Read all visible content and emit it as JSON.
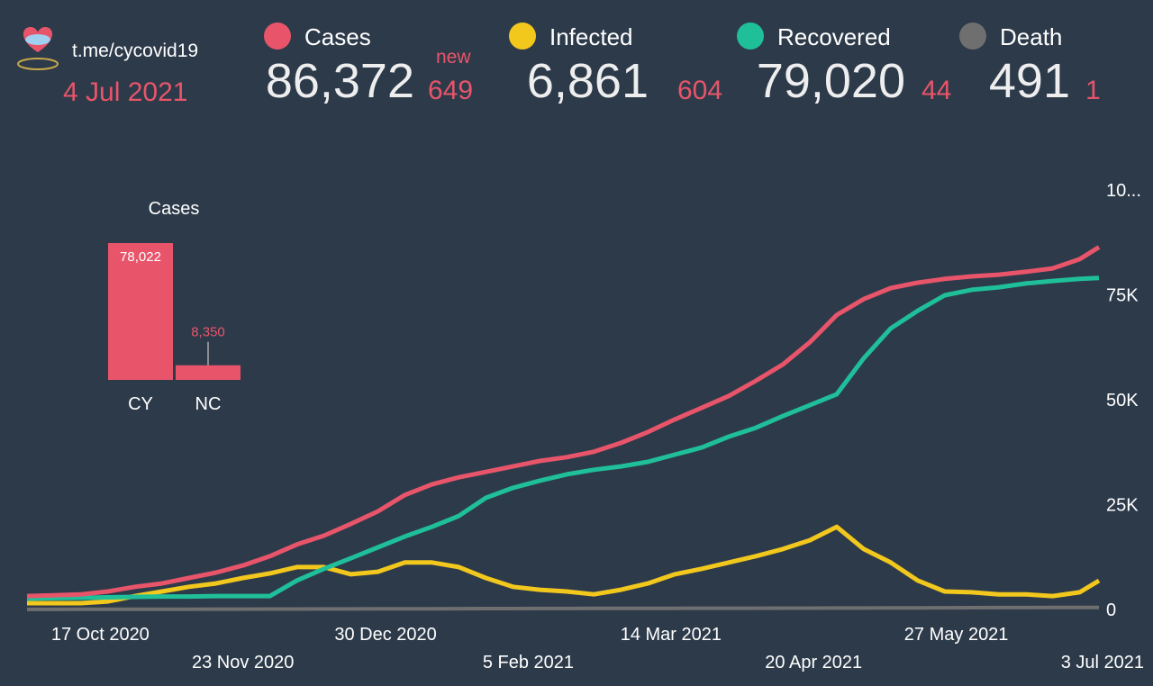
{
  "header": {
    "link": "t.me/cycovid19",
    "date": "4 Jul 2021",
    "new_label": "new",
    "stats": [
      {
        "name": "Cases",
        "color": "#e8556a",
        "value": "86,372",
        "new": "649"
      },
      {
        "name": "Infected",
        "color": "#f2c81d",
        "value": "6,861",
        "new": "604"
      },
      {
        "name": "Recovered",
        "color": "#1fbf9a",
        "value": "79,020",
        "new": "44"
      },
      {
        "name": "Death",
        "color": "#6f6f6f",
        "value": "491",
        "new": "1"
      }
    ]
  },
  "chart_data": [
    {
      "type": "bar",
      "title": "Cases",
      "categories": [
        "CY",
        "NC"
      ],
      "values": [
        78022,
        8350
      ],
      "value_labels": [
        "78,022",
        "8,350"
      ],
      "color": "#e8556a"
    },
    {
      "type": "line",
      "x": [
        "2020-09-28",
        "2020-10-05",
        "2020-10-12",
        "2020-10-19",
        "2020-10-26",
        "2020-11-02",
        "2020-11-09",
        "2020-11-16",
        "2020-11-23",
        "2020-11-30",
        "2020-12-07",
        "2020-12-14",
        "2020-12-21",
        "2020-12-28",
        "2021-01-04",
        "2021-01-11",
        "2021-01-18",
        "2021-01-25",
        "2021-02-01",
        "2021-02-08",
        "2021-02-15",
        "2021-02-22",
        "2021-03-01",
        "2021-03-08",
        "2021-03-15",
        "2021-03-22",
        "2021-03-29",
        "2021-04-05",
        "2021-04-12",
        "2021-04-19",
        "2021-04-26",
        "2021-05-03",
        "2021-05-10",
        "2021-05-17",
        "2021-05-24",
        "2021-05-31",
        "2021-06-07",
        "2021-06-14",
        "2021-06-21",
        "2021-06-28",
        "2021-07-03"
      ],
      "series": [
        {
          "name": "Cases",
          "color": "#e8556a",
          "values": [
            3200,
            3400,
            3600,
            4300,
            5400,
            6200,
            7500,
            8800,
            10500,
            12700,
            15500,
            17600,
            20400,
            23400,
            27300,
            29800,
            31500,
            32800,
            34100,
            35400,
            36300,
            37600,
            39700,
            42300,
            45300,
            48100,
            50900,
            54500,
            58400,
            63700,
            70200,
            74000,
            76600,
            77900,
            78800,
            79400,
            79800,
            80500,
            81300,
            83500,
            86372
          ]
        },
        {
          "name": "Infected",
          "color": "#f2c81d",
          "values": [
            1500,
            1500,
            1500,
            1900,
            3200,
            4300,
            5400,
            6200,
            7500,
            8600,
            10100,
            10100,
            8400,
            9000,
            11200,
            11200,
            10100,
            7500,
            5400,
            4700,
            4300,
            3600,
            4700,
            6200,
            8400,
            9700,
            11200,
            12700,
            14400,
            16500,
            19700,
            14400,
            11200,
            6900,
            4300,
            4100,
            3600,
            3600,
            3200,
            4100,
            6861
          ]
        },
        {
          "name": "Recovered",
          "color": "#1fbf9a",
          "values": [
            2600,
            2700,
            2800,
            2900,
            3000,
            3100,
            3100,
            3200,
            3200,
            3200,
            6900,
            9700,
            12200,
            14800,
            17400,
            19700,
            22300,
            26600,
            29000,
            30700,
            32200,
            33300,
            34100,
            35200,
            36900,
            38600,
            41200,
            43300,
            46100,
            48700,
            51300,
            59900,
            67000,
            71200,
            74900,
            76200,
            76800,
            77700,
            78300,
            78800,
            79020
          ]
        },
        {
          "name": "Death",
          "color": "#6f6f6f",
          "values": [
            30,
            30,
            40,
            50,
            50,
            60,
            70,
            80,
            90,
            100,
            110,
            120,
            130,
            140,
            160,
            180,
            200,
            210,
            220,
            230,
            240,
            250,
            260,
            270,
            280,
            290,
            300,
            310,
            320,
            330,
            340,
            350,
            360,
            380,
            400,
            420,
            440,
            460,
            470,
            480,
            491
          ]
        }
      ],
      "xlim": [
        "2020-09-28",
        "2021-07-03"
      ],
      "xticks": [
        {
          "value": "2020-10-17",
          "label": "17 Oct 2020"
        },
        {
          "value": "2020-11-23",
          "label": "23 Nov 2020"
        },
        {
          "value": "2020-12-30",
          "label": "30 Dec 2020"
        },
        {
          "value": "2021-02-05",
          "label": "5 Feb 2021"
        },
        {
          "value": "2021-03-14",
          "label": "14 Mar 2021"
        },
        {
          "value": "2021-04-20",
          "label": "20 Apr 2021"
        },
        {
          "value": "2021-05-27",
          "label": "27 May 2021"
        },
        {
          "value": "2021-07-03",
          "label": "3 Jul 2021"
        }
      ],
      "ylim": [
        0,
        100000
      ],
      "yticks": [
        0,
        {
          "value": 25000,
          "label": "25K"
        },
        {
          "value": 50000,
          "label": "50K"
        },
        {
          "value": 75000,
          "label": "75K"
        },
        {
          "value": 100000,
          "label": "10..."
        }
      ]
    }
  ]
}
